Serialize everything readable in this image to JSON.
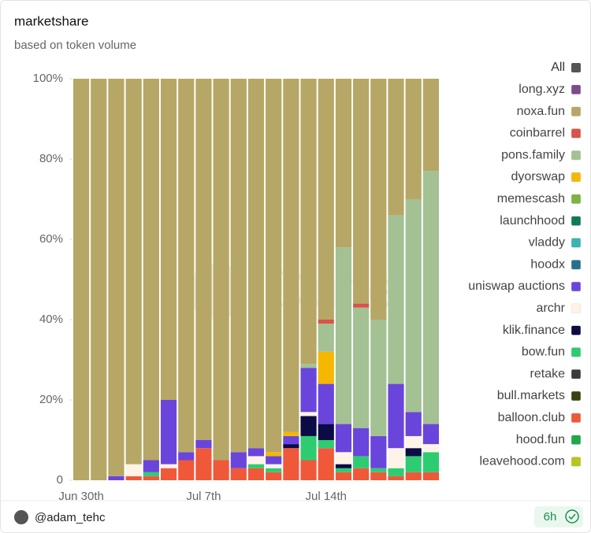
{
  "chart_data": {
    "type": "stacked_bar",
    "title": "marketshare",
    "subtitle": "based on token volume",
    "watermark": "Dune",
    "author": "@adam_tehc",
    "age": "6h",
    "legend_toggle": "All",
    "categories": [
      "Jun 30th",
      null,
      null,
      null,
      null,
      null,
      null,
      "Jul 7th",
      null,
      null,
      null,
      null,
      null,
      null,
      "Jul 14th",
      null,
      null,
      null,
      null,
      null,
      null
    ],
    "ylim": [
      0,
      100
    ],
    "yticks": [
      0,
      {
        "value": 20,
        "label": "20%"
      },
      {
        "value": 40,
        "label": "40%"
      },
      {
        "value": 60,
        "label": "60%"
      },
      {
        "value": 80,
        "label": "80%"
      },
      {
        "value": 100,
        "label": "100%"
      }
    ],
    "legend": "right",
    "series": [
      {
        "name": "long.xyz",
        "color": "#7d4b8c",
        "values": [
          0,
          0,
          0,
          0,
          0,
          0,
          0,
          0,
          0,
          0,
          0,
          0,
          0,
          0,
          0,
          0,
          0,
          0,
          0,
          0,
          0
        ]
      },
      {
        "name": "noxa.fun",
        "color": "#b6a766",
        "values": [
          100,
          100,
          99,
          96,
          95,
          80,
          93,
          90,
          95,
          93,
          92,
          93,
          88,
          71,
          60,
          42,
          56,
          60,
          34,
          30,
          23
        ]
      },
      {
        "name": "coinbarrel",
        "color": "#d9534a",
        "values": [
          0,
          0,
          0,
          0,
          0,
          0,
          0,
          0,
          0,
          0,
          0,
          0,
          0,
          0,
          1,
          0,
          1,
          0,
          0,
          0,
          0
        ]
      },
      {
        "name": "pons.family",
        "color": "#a3c193",
        "values": [
          0,
          0,
          0,
          0,
          0,
          0,
          0,
          0,
          0,
          0,
          0,
          0,
          0,
          1,
          7,
          44,
          30,
          29,
          42,
          53,
          63
        ]
      },
      {
        "name": "dyorswap",
        "color": "#f5b700",
        "values": [
          0,
          0,
          0,
          0,
          0,
          0,
          0,
          0,
          0,
          0,
          0,
          1,
          1,
          0,
          8,
          0,
          0,
          0,
          0,
          0,
          0
        ]
      },
      {
        "name": "memescash",
        "color": "#7cb342",
        "values": [
          0,
          0,
          0,
          0,
          0,
          0,
          0,
          0,
          0,
          0,
          0,
          0,
          0,
          0,
          0,
          0,
          0,
          0,
          0,
          0,
          0
        ]
      },
      {
        "name": "launchhood",
        "color": "#0f7a5a",
        "values": [
          0,
          0,
          0,
          0,
          0,
          0,
          0,
          0,
          0,
          0,
          0,
          0,
          0,
          0,
          0,
          0,
          0,
          0,
          0,
          0,
          0
        ]
      },
      {
        "name": "vladdy",
        "color": "#3bb3b3",
        "values": [
          0,
          0,
          0,
          0,
          0,
          0,
          0,
          0,
          0,
          0,
          0,
          0,
          0,
          0,
          0,
          0,
          0,
          0,
          0,
          0,
          0
        ]
      },
      {
        "name": "hoodx",
        "color": "#24708f",
        "values": [
          0,
          0,
          0,
          0,
          0,
          0,
          0,
          0,
          0,
          0,
          0,
          0,
          0,
          0,
          0,
          0,
          0,
          0,
          0,
          0,
          0
        ]
      },
      {
        "name": "uniswap auctions",
        "color": "#6a45dc",
        "values": [
          0,
          0,
          1,
          0,
          3,
          16,
          2,
          2,
          0,
          4,
          2,
          2,
          2,
          11,
          10,
          7,
          7,
          8,
          16,
          6,
          5
        ]
      },
      {
        "name": "archr",
        "color": "#fdf3e6",
        "values": [
          0,
          0,
          0,
          3,
          0,
          1,
          0,
          0,
          0,
          0,
          2,
          1,
          0,
          1,
          0,
          3,
          0,
          0,
          5,
          3,
          2
        ]
      },
      {
        "name": "klik.finance",
        "color": "#0b0b45",
        "values": [
          0,
          0,
          0,
          0,
          0,
          0,
          0,
          0,
          0,
          0,
          0,
          0,
          1,
          5,
          4,
          1,
          0,
          0,
          0,
          2,
          0
        ]
      },
      {
        "name": "bow.fun",
        "color": "#2ecc71",
        "values": [
          0,
          0,
          0,
          0,
          1,
          0,
          0,
          0,
          0,
          0,
          1,
          1,
          0,
          6,
          2,
          1,
          3,
          1,
          2,
          4,
          5
        ]
      },
      {
        "name": "retake",
        "color": "#3a3a3a",
        "values": [
          0,
          0,
          0,
          0,
          0,
          0,
          0,
          0,
          0,
          0,
          0,
          0,
          0,
          0,
          0,
          0,
          0,
          0,
          0,
          0,
          0
        ]
      },
      {
        "name": "bull.markets",
        "color": "#3d4010",
        "values": [
          0,
          0,
          0,
          0,
          0,
          0,
          0,
          0,
          0,
          0,
          0,
          0,
          0,
          0,
          0,
          0,
          0,
          0,
          0,
          0,
          0
        ]
      },
      {
        "name": "balloon.club",
        "color": "#f0583a",
        "values": [
          0,
          0,
          0,
          1,
          1,
          3,
          5,
          8,
          5,
          3,
          3,
          2,
          8,
          5,
          8,
          2,
          3,
          2,
          1,
          2,
          2
        ]
      },
      {
        "name": "hood.fun",
        "color": "#1fa84a",
        "values": [
          0,
          0,
          0,
          0,
          0,
          0,
          0,
          0,
          0,
          0,
          0,
          0,
          0,
          0,
          0,
          0,
          0,
          0,
          0,
          0,
          0
        ]
      },
      {
        "name": "leavehood.com",
        "color": "#b5c61c",
        "values": [
          0,
          0,
          0,
          0,
          0,
          0,
          0,
          0,
          0,
          0,
          0,
          0,
          0,
          0,
          0,
          0,
          0,
          0,
          0,
          0,
          0
        ]
      }
    ]
  }
}
